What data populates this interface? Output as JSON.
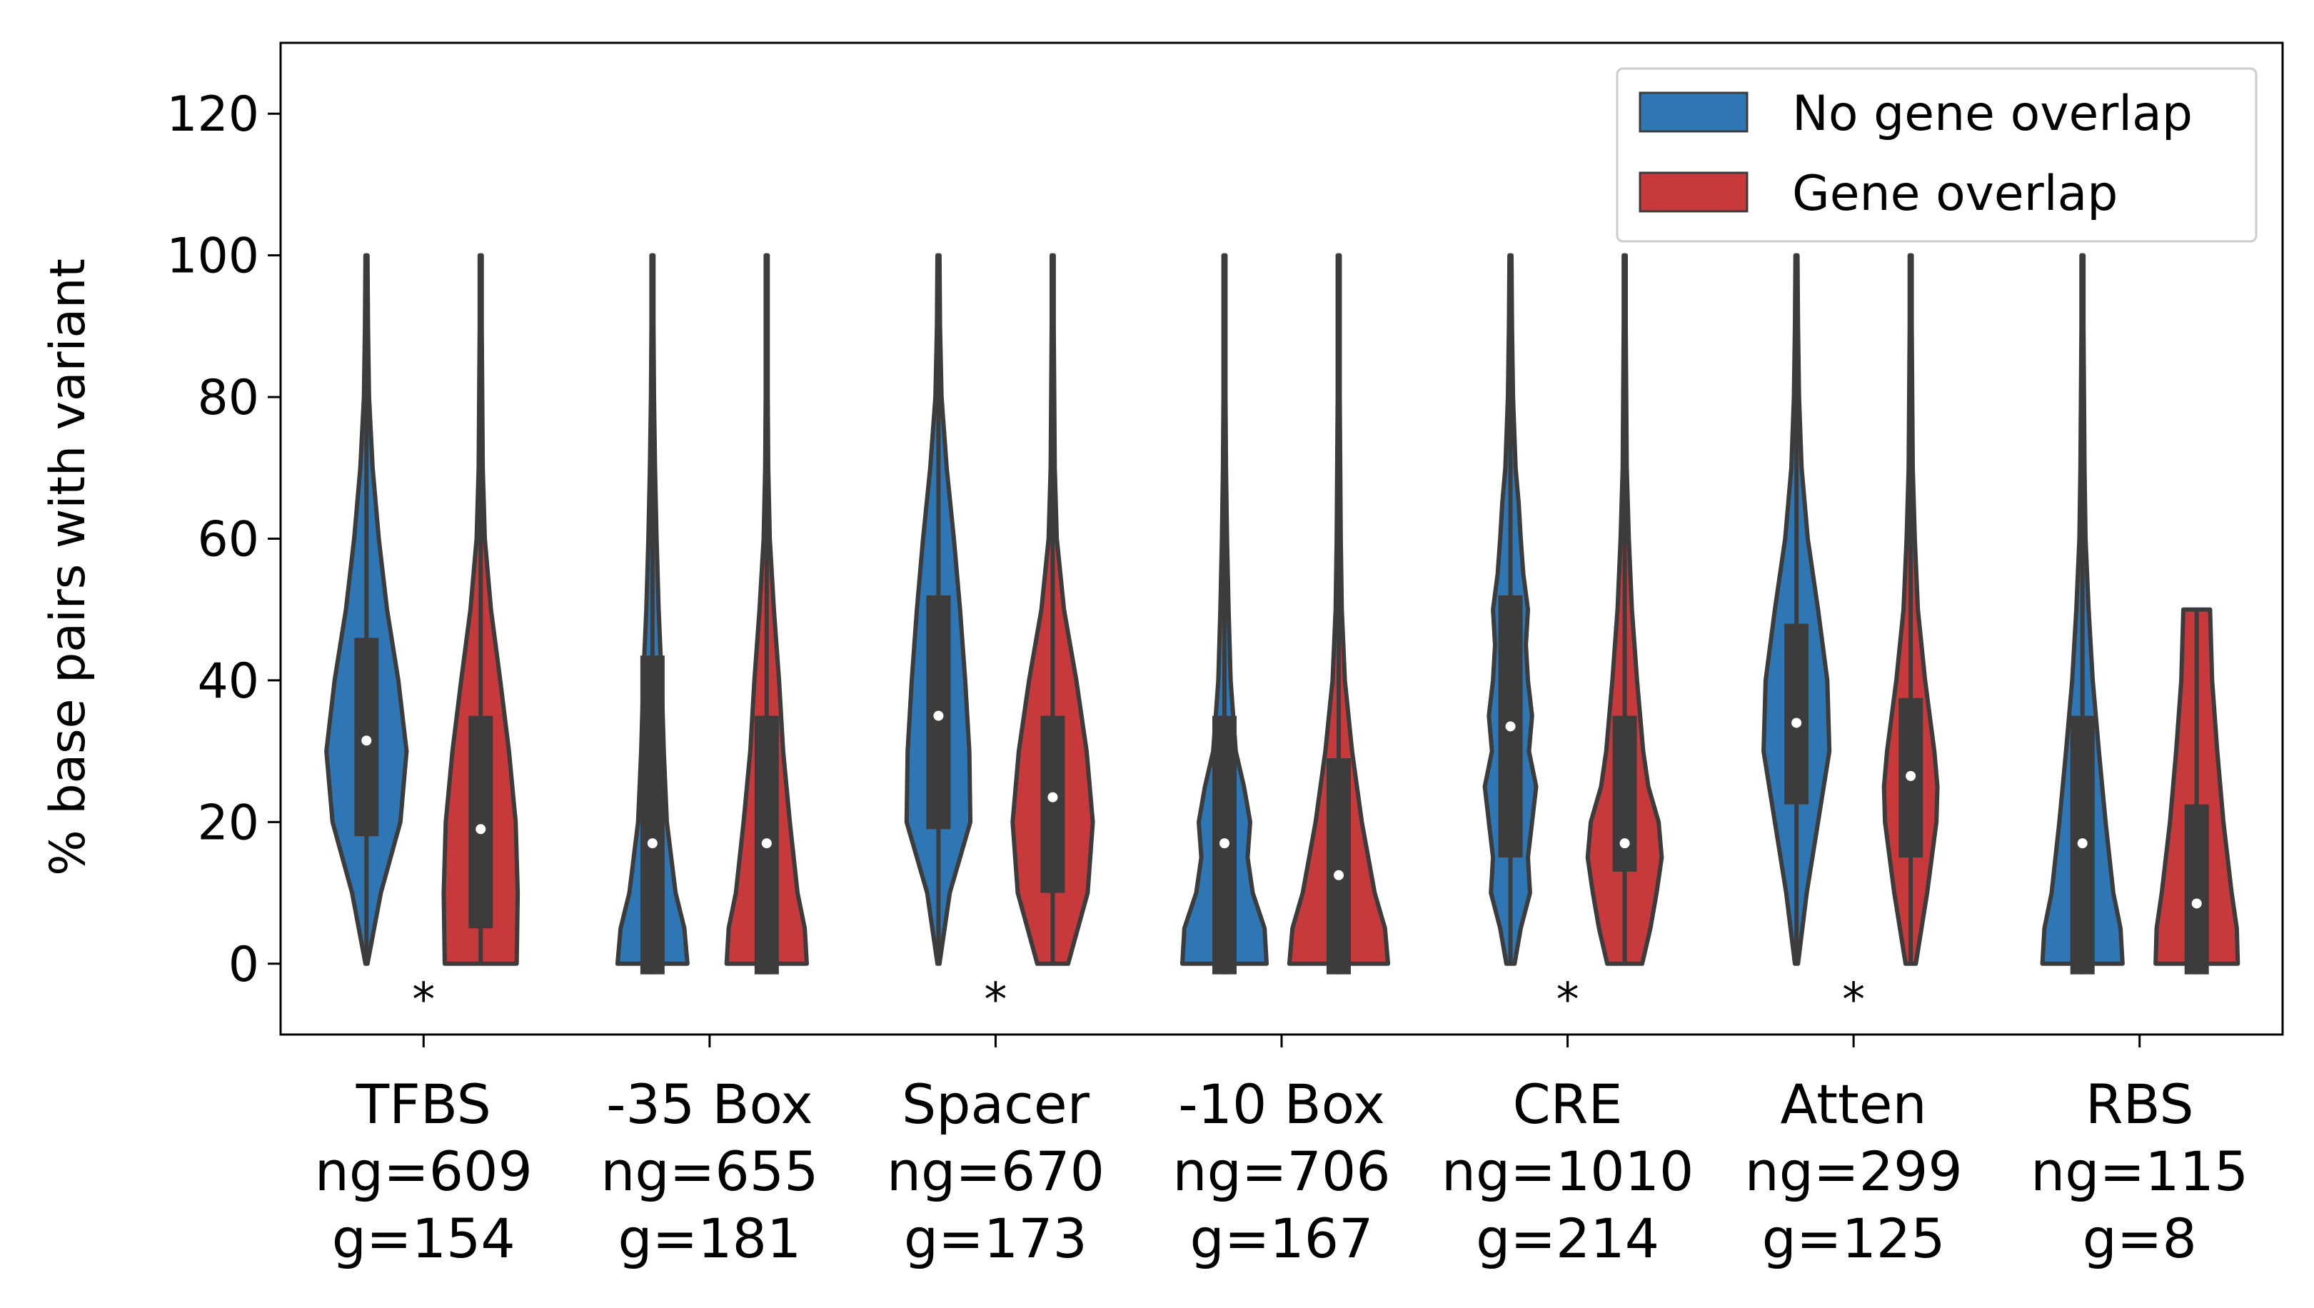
{
  "chart_data": {
    "type": "violin",
    "ylabel": "% base pairs with variant",
    "ylim": [
      -10,
      130
    ],
    "yticks": [
      0,
      20,
      40,
      60,
      80,
      100,
      120
    ],
    "grid": false,
    "legend_position": "top-right",
    "colors": {
      "no_gene_overlap": "#2f77b4",
      "gene_overlap": "#c8393b",
      "inner_box": "#3c3c3c",
      "outline": "#3c3c3c"
    },
    "series": [
      {
        "key": "no_gene_overlap",
        "name": "No gene overlap"
      },
      {
        "key": "gene_overlap",
        "name": "Gene overlap"
      }
    ],
    "categories": [
      {
        "label": "TFBS",
        "counts_ng": "ng=609",
        "counts_g": "g=154",
        "significant": true,
        "no_gene_overlap": {
          "min": 0,
          "max": 100,
          "q1": 18,
          "median": 31.5,
          "q3": 46,
          "whisker_low": 0,
          "whisker_high": 100,
          "shape": [
            [
              0,
              0.02
            ],
            [
              10,
              0.28
            ],
            [
              20,
              0.66
            ],
            [
              30,
              0.78
            ],
            [
              40,
              0.62
            ],
            [
              50,
              0.4
            ],
            [
              60,
              0.24
            ],
            [
              70,
              0.12
            ],
            [
              80,
              0.05
            ],
            [
              90,
              0.03
            ],
            [
              100,
              0.02
            ]
          ]
        },
        "gene_overlap": {
          "min": 0,
          "max": 100,
          "q1": 5,
          "median": 19,
          "q3": 35,
          "whisker_low": 0,
          "whisker_high": 100,
          "shape": [
            [
              0,
              0.7
            ],
            [
              10,
              0.72
            ],
            [
              20,
              0.68
            ],
            [
              30,
              0.55
            ],
            [
              40,
              0.38
            ],
            [
              50,
              0.2
            ],
            [
              60,
              0.08
            ],
            [
              70,
              0.04
            ],
            [
              80,
              0.03
            ],
            [
              90,
              0.02
            ],
            [
              100,
              0.02
            ]
          ]
        }
      },
      {
        "label": "-35 Box",
        "counts_ng": "ng=655",
        "counts_g": "g=181",
        "significant": false,
        "no_gene_overlap": {
          "min": 0,
          "max": 100,
          "q1": -1.5,
          "median": 17,
          "q3": 43.5,
          "whisker_low": -1.5,
          "whisker_high": 100,
          "shape": [
            [
              0,
              0.68
            ],
            [
              5,
              0.62
            ],
            [
              10,
              0.45
            ],
            [
              20,
              0.28
            ],
            [
              30,
              0.22
            ],
            [
              40,
              0.18
            ],
            [
              50,
              0.12
            ],
            [
              60,
              0.08
            ],
            [
              70,
              0.05
            ],
            [
              80,
              0.03
            ],
            [
              90,
              0.02
            ],
            [
              100,
              0.02
            ]
          ]
        },
        "gene_overlap": {
          "min": 0,
          "max": 100,
          "q1": -1.5,
          "median": 17,
          "q3": 35,
          "whisker_low": -1.5,
          "whisker_high": 100,
          "shape": [
            [
              0,
              0.78
            ],
            [
              5,
              0.74
            ],
            [
              10,
              0.6
            ],
            [
              20,
              0.45
            ],
            [
              30,
              0.32
            ],
            [
              40,
              0.24
            ],
            [
              50,
              0.14
            ],
            [
              60,
              0.06
            ],
            [
              70,
              0.03
            ],
            [
              80,
              0.02
            ],
            [
              90,
              0.02
            ],
            [
              100,
              0.02
            ]
          ]
        }
      },
      {
        "label": "Spacer",
        "counts_ng": "ng=670",
        "counts_g": "g=173",
        "significant": true,
        "no_gene_overlap": {
          "min": 0,
          "max": 100,
          "q1": 19,
          "median": 35,
          "q3": 52,
          "whisker_low": 0,
          "whisker_high": 100,
          "shape": [
            [
              0,
              0.02
            ],
            [
              10,
              0.22
            ],
            [
              20,
              0.62
            ],
            [
              30,
              0.6
            ],
            [
              40,
              0.52
            ],
            [
              50,
              0.42
            ],
            [
              60,
              0.3
            ],
            [
              70,
              0.16
            ],
            [
              80,
              0.06
            ],
            [
              90,
              0.03
            ],
            [
              100,
              0.02
            ]
          ]
        },
        "gene_overlap": {
          "min": 0,
          "max": 100,
          "q1": 10,
          "median": 23.5,
          "q3": 35,
          "whisker_low": 0,
          "whisker_high": 100,
          "shape": [
            [
              0,
              0.3
            ],
            [
              10,
              0.68
            ],
            [
              20,
              0.78
            ],
            [
              30,
              0.66
            ],
            [
              40,
              0.46
            ],
            [
              50,
              0.22
            ],
            [
              60,
              0.08
            ],
            [
              70,
              0.04
            ],
            [
              80,
              0.03
            ],
            [
              90,
              0.02
            ],
            [
              100,
              0.02
            ]
          ]
        }
      },
      {
        "label": "-10 Box",
        "counts_ng": "ng=706",
        "counts_g": "g=167",
        "significant": false,
        "no_gene_overlap": {
          "min": 0,
          "max": 100,
          "q1": -1.5,
          "median": 17,
          "q3": 35,
          "whisker_low": -1.5,
          "whisker_high": 100,
          "shape": [
            [
              0,
              0.82
            ],
            [
              5,
              0.78
            ],
            [
              10,
              0.55
            ],
            [
              15,
              0.45
            ],
            [
              20,
              0.5
            ],
            [
              25,
              0.38
            ],
            [
              30,
              0.22
            ],
            [
              40,
              0.12
            ],
            [
              50,
              0.08
            ],
            [
              60,
              0.05
            ],
            [
              70,
              0.03
            ],
            [
              80,
              0.02
            ],
            [
              90,
              0.02
            ],
            [
              100,
              0.02
            ]
          ]
        },
        "gene_overlap": {
          "min": 0,
          "max": 100,
          "q1": -1.5,
          "median": 12.5,
          "q3": 29,
          "whisker_low": -1.5,
          "whisker_high": 100,
          "shape": [
            [
              0,
              0.96
            ],
            [
              5,
              0.9
            ],
            [
              10,
              0.7
            ],
            [
              20,
              0.45
            ],
            [
              30,
              0.26
            ],
            [
              40,
              0.12
            ],
            [
              50,
              0.06
            ],
            [
              60,
              0.04
            ],
            [
              70,
              0.03
            ],
            [
              80,
              0.02
            ],
            [
              90,
              0.02
            ],
            [
              100,
              0.02
            ]
          ]
        }
      },
      {
        "label": "CRE",
        "counts_ng": "ng=1010",
        "counts_g": "g=214",
        "significant": true,
        "no_gene_overlap": {
          "min": 0,
          "max": 100,
          "q1": 15,
          "median": 33.5,
          "q3": 52,
          "whisker_low": 0,
          "whisker_high": 100,
          "shape": [
            [
              0,
              0.08
            ],
            [
              5,
              0.2
            ],
            [
              10,
              0.38
            ],
            [
              15,
              0.34
            ],
            [
              20,
              0.42
            ],
            [
              25,
              0.5
            ],
            [
              30,
              0.36
            ],
            [
              35,
              0.42
            ],
            [
              40,
              0.34
            ],
            [
              45,
              0.3
            ],
            [
              50,
              0.34
            ],
            [
              55,
              0.25
            ],
            [
              60,
              0.2
            ],
            [
              65,
              0.16
            ],
            [
              70,
              0.1
            ],
            [
              80,
              0.05
            ],
            [
              90,
              0.03
            ],
            [
              100,
              0.02
            ]
          ]
        },
        "gene_overlap": {
          "min": 0,
          "max": 100,
          "q1": 13,
          "median": 17,
          "q3": 35,
          "whisker_low": 0,
          "whisker_high": 100,
          "shape": [
            [
              0,
              0.34
            ],
            [
              5,
              0.5
            ],
            [
              10,
              0.62
            ],
            [
              15,
              0.72
            ],
            [
              20,
              0.66
            ],
            [
              25,
              0.46
            ],
            [
              30,
              0.36
            ],
            [
              35,
              0.3
            ],
            [
              40,
              0.24
            ],
            [
              50,
              0.14
            ],
            [
              60,
              0.08
            ],
            [
              70,
              0.04
            ],
            [
              80,
              0.03
            ],
            [
              90,
              0.02
            ],
            [
              100,
              0.02
            ]
          ]
        }
      },
      {
        "label": "Atten",
        "counts_ng": "ng=299",
        "counts_g": "g=125",
        "significant": true,
        "no_gene_overlap": {
          "min": 0,
          "max": 100,
          "q1": 22.5,
          "median": 34,
          "q3": 48,
          "whisker_low": 0,
          "whisker_high": 100,
          "shape": [
            [
              0,
              0.03
            ],
            [
              10,
              0.2
            ],
            [
              20,
              0.42
            ],
            [
              30,
              0.64
            ],
            [
              40,
              0.6
            ],
            [
              50,
              0.42
            ],
            [
              60,
              0.22
            ],
            [
              70,
              0.1
            ],
            [
              80,
              0.05
            ],
            [
              90,
              0.03
            ],
            [
              100,
              0.02
            ]
          ]
        },
        "gene_overlap": {
          "min": 0,
          "max": 100,
          "q1": 15,
          "median": 26.5,
          "q3": 37.5,
          "whisker_low": 0,
          "whisker_high": 100,
          "shape": [
            [
              0,
              0.1
            ],
            [
              10,
              0.32
            ],
            [
              20,
              0.5
            ],
            [
              25,
              0.52
            ],
            [
              30,
              0.46
            ],
            [
              40,
              0.28
            ],
            [
              50,
              0.14
            ],
            [
              60,
              0.08
            ],
            [
              70,
              0.04
            ],
            [
              80,
              0.03
            ],
            [
              90,
              0.02
            ],
            [
              100,
              0.02
            ]
          ]
        }
      },
      {
        "label": "RBS",
        "counts_ng": "ng=115",
        "counts_g": "g=8",
        "significant": false,
        "no_gene_overlap": {
          "min": 0,
          "max": 100,
          "q1": -1.5,
          "median": 17,
          "q3": 35,
          "whisker_low": -1.5,
          "whisker_high": 100,
          "shape": [
            [
              0,
              0.78
            ],
            [
              5,
              0.74
            ],
            [
              10,
              0.6
            ],
            [
              20,
              0.45
            ],
            [
              30,
              0.32
            ],
            [
              40,
              0.2
            ],
            [
              50,
              0.12
            ],
            [
              60,
              0.06
            ],
            [
              70,
              0.04
            ],
            [
              80,
              0.03
            ],
            [
              90,
              0.02
            ],
            [
              100,
              0.02
            ]
          ]
        },
        "gene_overlap": {
          "min": 0,
          "max": 50,
          "q1": -1.5,
          "median": 8.5,
          "q3": 22.5,
          "whisker_low": -1.5,
          "whisker_high": 50,
          "shape": [
            [
              0,
              0.8
            ],
            [
              5,
              0.78
            ],
            [
              10,
              0.68
            ],
            [
              20,
              0.52
            ],
            [
              30,
              0.4
            ],
            [
              40,
              0.3
            ],
            [
              50,
              0.26
            ]
          ]
        }
      }
    ]
  }
}
